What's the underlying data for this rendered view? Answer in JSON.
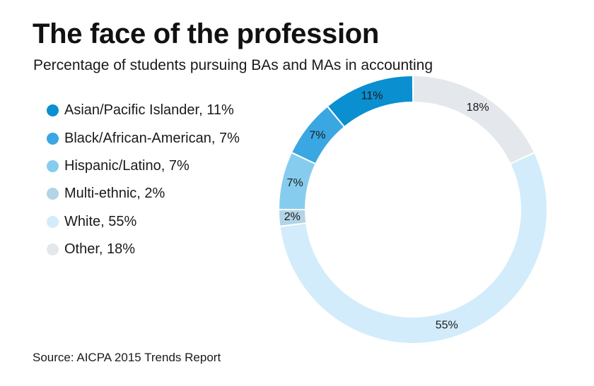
{
  "title": "The face of the profession",
  "subtitle": "Percentage of students pursuing BAs and MAs in accounting",
  "source": "Source: AICPA 2015 Trends Report",
  "legend": [
    {
      "label": "Asian/Pacific Islander, 11%",
      "color": "#0a8fd0"
    },
    {
      "label": "Black/African-American, 7%",
      "color": "#3aa7e2"
    },
    {
      "label": "Hispanic/Latino, 7%",
      "color": "#86ccef"
    },
    {
      "label": "Multi-ethnic, 2%",
      "color": "#b2d4e6"
    },
    {
      "label": "White, 55%",
      "color": "#d2ecfb"
    },
    {
      "label": "Other, 18%",
      "color": "#e4e8ec"
    }
  ],
  "chart_data": {
    "type": "pie",
    "title": "The face of the profession",
    "subtitle": "Percentage of students pursuing BAs and MAs in accounting",
    "unit": "%",
    "donut": true,
    "legend_position": "left",
    "slices": [
      {
        "name": "Asian/Pacific Islander",
        "value": 11,
        "data_label": "11%",
        "color": "#0a8fd0"
      },
      {
        "name": "Black/African-American",
        "value": 7,
        "data_label": "7%",
        "color": "#3aa7e2"
      },
      {
        "name": "Hispanic/Latino",
        "value": 7,
        "data_label": "7%",
        "color": "#86ccef"
      },
      {
        "name": "Multi-ethnic",
        "value": 2,
        "data_label": "2%",
        "color": "#b2d4e6"
      },
      {
        "name": "White",
        "value": 55,
        "data_label": "55%",
        "color": "#d2ecfb"
      },
      {
        "name": "Other",
        "value": 18,
        "data_label": "18%",
        "color": "#e4e8ec"
      }
    ]
  }
}
